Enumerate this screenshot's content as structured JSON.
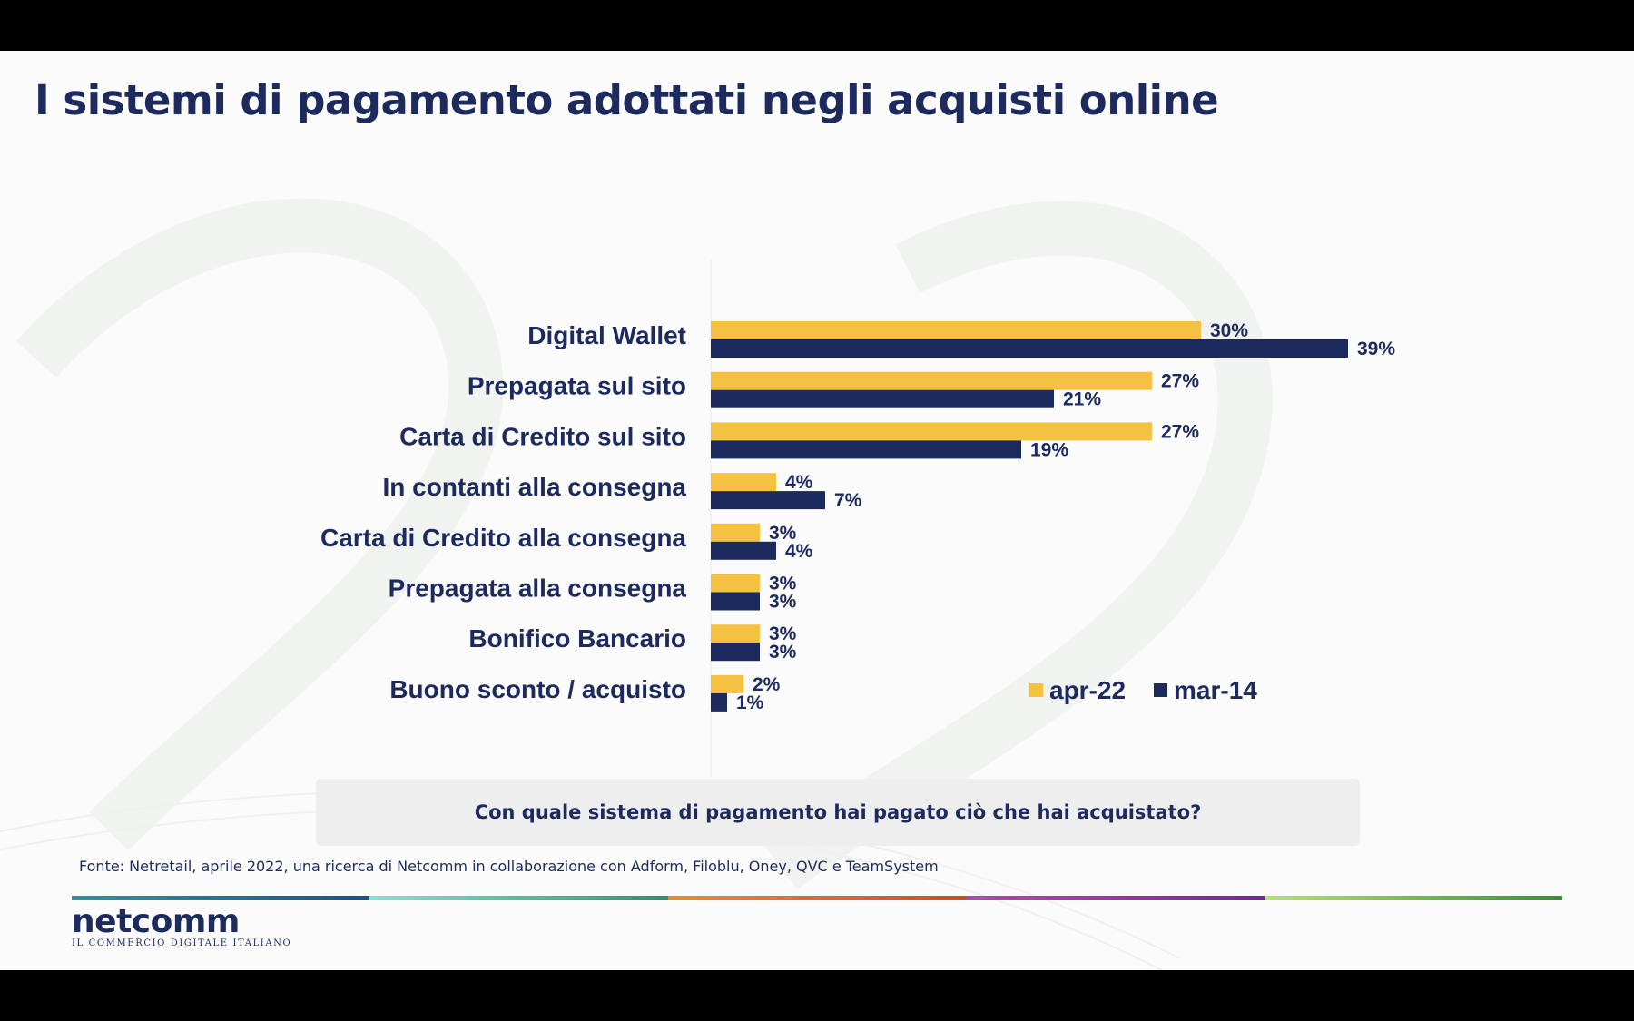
{
  "slide": {
    "title": "I sistemi di pagamento adottati negli acquisti online",
    "question": "Con quale sistema di pagamento hai pagato ciò che hai acquistato?",
    "source": "Fonte: Netretail, aprile 2022, una ricerca di Netcomm in collaborazione con Adform, Filoblu, Oney, QVC e TeamSystem"
  },
  "logo": {
    "wordmark_pre": "n",
    "wordmark_e": "e",
    "wordmark_post": "tcomm",
    "tagline": "IL COMMERCIO DIGITALE ITALIANO"
  },
  "colors": {
    "navy": "#1c2a5e",
    "gold": "#f5c142",
    "rule": [
      "#2e6e8e",
      "#7ad9c4",
      "#e07b3a",
      "#9b3c9e",
      "#9ed46a"
    ]
  },
  "chart_data": {
    "type": "bar",
    "orientation": "horizontal",
    "categories": [
      "Digital Wallet",
      "Prepagata sul sito",
      "Carta di Credito sul sito",
      "In contanti alla consegna",
      "Carta di Credito alla consegna",
      "Prepagata alla consegna",
      "Bonifico Bancario",
      "Buono sconto / acquisto"
    ],
    "series": [
      {
        "name": "apr-22",
        "color": "#f5c142",
        "values": [
          30,
          27,
          27,
          4,
          3,
          3,
          3,
          2
        ],
        "labels": [
          "30%",
          "27%",
          "27%",
          "4%",
          "3%",
          "3%",
          "3%",
          "2%"
        ]
      },
      {
        "name": "mar-14",
        "color": "#1c2a5e",
        "values": [
          39,
          21,
          19,
          7,
          4,
          3,
          3,
          1
        ],
        "labels": [
          "39%",
          "21%",
          "19%",
          "7%",
          "4%",
          "3%",
          "3%",
          "1%"
        ]
      }
    ],
    "legend_position": "bottom-right",
    "grid": false
  }
}
